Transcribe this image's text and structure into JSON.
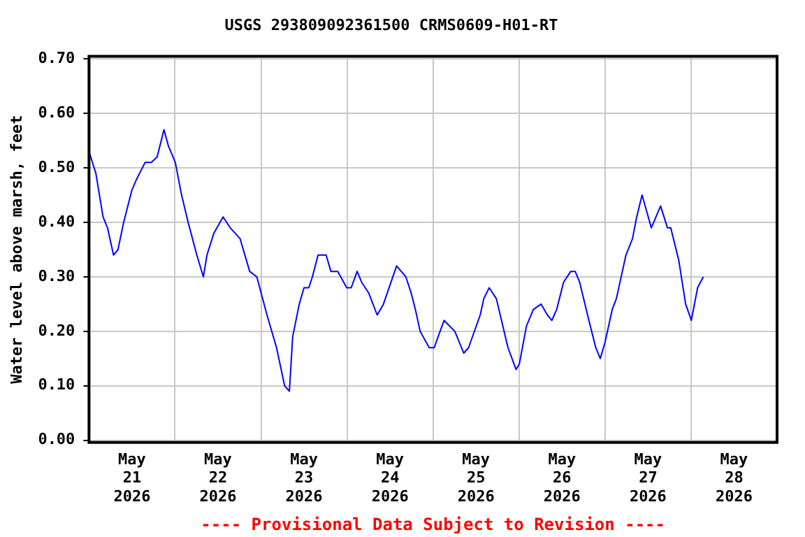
{
  "chart_data": {
    "type": "line",
    "title": "USGS 293809092361500 CRMS0609-H01-RT",
    "ylabel": "Water level above marsh, feet",
    "annotations": [
      "---- Provisional Data Subject to Revision ----"
    ],
    "x": [
      "2026-05-21T00:00",
      "2026-05-21T01:55",
      "2026-05-21T03:55",
      "2026-05-21T05:10",
      "2026-05-21T06:50",
      "2026-05-21T08:05",
      "2026-05-21T09:40",
      "2026-05-21T12:00",
      "2026-05-21T13:20",
      "2026-05-21T15:40",
      "2026-05-21T17:25",
      "2026-05-21T19:00",
      "2026-05-21T20:55",
      "2026-05-21T22:10",
      "2026-05-22T00:05",
      "2026-05-22T01:50",
      "2026-05-22T03:40",
      "2026-05-22T06:05",
      "2026-05-22T07:55",
      "2026-05-22T08:55",
      "2026-05-22T10:50",
      "2026-05-22T13:25",
      "2026-05-22T15:25",
      "2026-05-22T18:10",
      "2026-05-22T20:50",
      "2026-05-22T22:50",
      "2026-05-23T01:40",
      "2026-05-23T04:20",
      "2026-05-23T06:35",
      "2026-05-23T07:55",
      "2026-05-23T08:50",
      "2026-05-23T10:40",
      "2026-05-23T12:00",
      "2026-05-23T13:20",
      "2026-05-23T14:20",
      "2026-05-23T15:55",
      "2026-05-23T18:10",
      "2026-05-23T19:30",
      "2026-05-23T21:25",
      "2026-05-23T23:55",
      "2026-05-24T01:10",
      "2026-05-24T02:50",
      "2026-05-24T04:05",
      "2026-05-24T06:05",
      "2026-05-24T08:25",
      "2026-05-24T10:10",
      "2026-05-24T13:50",
      "2026-05-24T16:25",
      "2026-05-24T17:55",
      "2026-05-24T19:05",
      "2026-05-24T20:25",
      "2026-05-24T22:55",
      "2026-05-25T00:20",
      "2026-05-25T01:25",
      "2026-05-25T03:05",
      "2026-05-25T06:05",
      "2026-05-25T08:35",
      "2026-05-25T09:55",
      "2026-05-25T13:10",
      "2026-05-25T14:10",
      "2026-05-25T15:40",
      "2026-05-25T17:40",
      "2026-05-25T20:55",
      "2026-05-25T23:10",
      "2026-05-26T00:05",
      "2026-05-26T02:05",
      "2026-05-26T04:00",
      "2026-05-26T06:10",
      "2026-05-26T07:55",
      "2026-05-26T09:10",
      "2026-05-26T10:30",
      "2026-05-26T12:25",
      "2026-05-26T14:25",
      "2026-05-26T15:40",
      "2026-05-26T16:55",
      "2026-05-26T19:30",
      "2026-05-26T21:25",
      "2026-05-26T22:40",
      "2026-05-27T00:00",
      "2026-05-27T02:00",
      "2026-05-27T03:10",
      "2026-05-27T05:50",
      "2026-05-27T07:40",
      "2026-05-27T08:50",
      "2026-05-27T10:20",
      "2026-05-27T12:55",
      "2026-05-27T15:30",
      "2026-05-27T17:25",
      "2026-05-27T18:20",
      "2026-05-27T20:35",
      "2026-05-27T22:30",
      "2026-05-28T00:05",
      "2026-05-28T01:50",
      "2026-05-28T03:25"
    ],
    "series": [
      {
        "color": "#0000ff",
        "values": [
          0.53,
          0.49,
          0.41,
          0.39,
          0.34,
          0.35,
          0.4,
          0.46,
          0.48,
          0.51,
          0.51,
          0.52,
          0.57,
          0.54,
          0.51,
          0.45,
          0.4,
          0.34,
          0.3,
          0.34,
          0.38,
          0.41,
          0.39,
          0.37,
          0.31,
          0.3,
          0.23,
          0.17,
          0.1,
          0.09,
          0.19,
          0.25,
          0.28,
          0.28,
          0.3,
          0.34,
          0.34,
          0.31,
          0.31,
          0.28,
          0.28,
          0.31,
          0.29,
          0.27,
          0.23,
          0.25,
          0.32,
          0.3,
          0.27,
          0.24,
          0.2,
          0.17,
          0.17,
          0.19,
          0.22,
          0.2,
          0.16,
          0.17,
          0.23,
          0.26,
          0.28,
          0.26,
          0.17,
          0.13,
          0.14,
          0.21,
          0.24,
          0.25,
          0.23,
          0.22,
          0.24,
          0.29,
          0.31,
          0.31,
          0.29,
          0.22,
          0.17,
          0.15,
          0.18,
          0.24,
          0.26,
          0.34,
          0.37,
          0.41,
          0.45,
          0.39,
          0.43,
          0.39,
          0.39,
          0.33,
          0.25,
          0.22,
          0.28,
          0.3
        ]
      }
    ],
    "xlim": [
      "2026-05-21",
      "2026-05-29"
    ],
    "xticks": [
      {
        "value": "2026-05-21",
        "label": null
      },
      {
        "value": "2026-05-21T12:00",
        "label": "May 21 2026"
      },
      {
        "value": "2026-05-22",
        "label": null
      },
      {
        "value": "2026-05-22T12:00",
        "label": "May 22 2026"
      },
      {
        "value": "2026-05-23",
        "label": null
      },
      {
        "value": "2026-05-23T12:00",
        "label": "May 23 2026"
      },
      {
        "value": "2026-05-24",
        "label": null
      },
      {
        "value": "2026-05-24T12:00",
        "label": "May 24 2026"
      },
      {
        "value": "2026-05-25",
        "label": null
      },
      {
        "value": "2026-05-25T12:00",
        "label": "May 25 2026"
      },
      {
        "value": "2026-05-26",
        "label": null
      },
      {
        "value": "2026-05-26T12:00",
        "label": "May 26 2026"
      },
      {
        "value": "2026-05-27",
        "label": null
      },
      {
        "value": "2026-05-27T12:00",
        "label": "May 27 2026"
      },
      {
        "value": "2026-05-28",
        "label": null
      },
      {
        "value": "2026-05-28T12:00",
        "label": "May 28 2026"
      },
      {
        "value": "2026-05-29",
        "label": null
      }
    ],
    "ylim": [
      -0.004,
      0.705
    ],
    "yticks": [
      {
        "value": 0,
        "label": "0.00"
      },
      {
        "value": 0.1,
        "label": "0.10"
      },
      {
        "value": 0.2,
        "label": "0.20"
      },
      {
        "value": 0.3,
        "label": "0.30"
      },
      {
        "value": 0.4,
        "label": "0.40"
      },
      {
        "value": 0.5,
        "label": "0.50"
      },
      {
        "value": 0.6,
        "label": "0.60"
      },
      {
        "value": 0.7,
        "label": "0.70"
      }
    ],
    "grid": true,
    "legend": false,
    "marker": "none",
    "line_style": "solid"
  }
}
